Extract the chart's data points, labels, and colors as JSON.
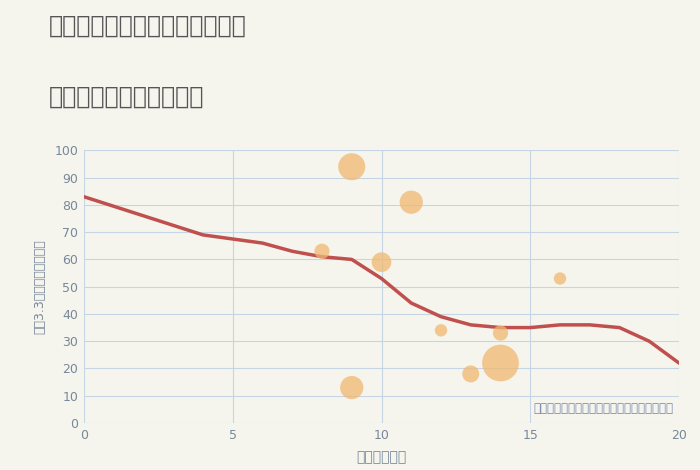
{
  "title_line1": "兵庫県姫路市大津区恵美酒町の",
  "title_line2": "駅距離別中古戸建て価格",
  "xlabel": "駅距離（分）",
  "ylabel": "坪（3.3㎡）単価（万円）",
  "background_color": "#f5f5ee",
  "plot_bg_color": "#f5f5ee",
  "line_x": [
    0,
    2,
    4,
    6,
    7,
    8,
    9,
    10,
    11,
    12,
    13,
    14,
    15,
    16,
    17,
    18,
    19,
    20
  ],
  "line_y": [
    83,
    76,
    69,
    66,
    63,
    61,
    60,
    53,
    44,
    39,
    36,
    35,
    35,
    36,
    36,
    35,
    30,
    22
  ],
  "line_color": "#c0504d",
  "line_width": 2.5,
  "scatter_x": [
    8,
    9,
    10,
    11,
    12,
    13,
    14,
    14,
    16,
    9
  ],
  "scatter_y": [
    63,
    94,
    59,
    81,
    34,
    18,
    33,
    22,
    53,
    13
  ],
  "scatter_size": [
    120,
    380,
    200,
    280,
    80,
    150,
    120,
    700,
    80,
    280
  ],
  "scatter_color": "#f0b870",
  "scatter_alpha": 0.75,
  "xlim": [
    0,
    20
  ],
  "ylim": [
    0,
    100
  ],
  "xticks": [
    0,
    5,
    10,
    15,
    20
  ],
  "yticks": [
    0,
    10,
    20,
    30,
    40,
    50,
    60,
    70,
    80,
    90,
    100
  ],
  "grid_color": "#c5d5e5",
  "title_color": "#555555",
  "title_fontsize": 17,
  "axis_label_color": "#778899",
  "tick_color": "#778899",
  "annotation": "円の大きさは、取引のあった物件面積を示す",
  "annotation_color": "#7788aa",
  "annotation_fontsize": 8.5
}
